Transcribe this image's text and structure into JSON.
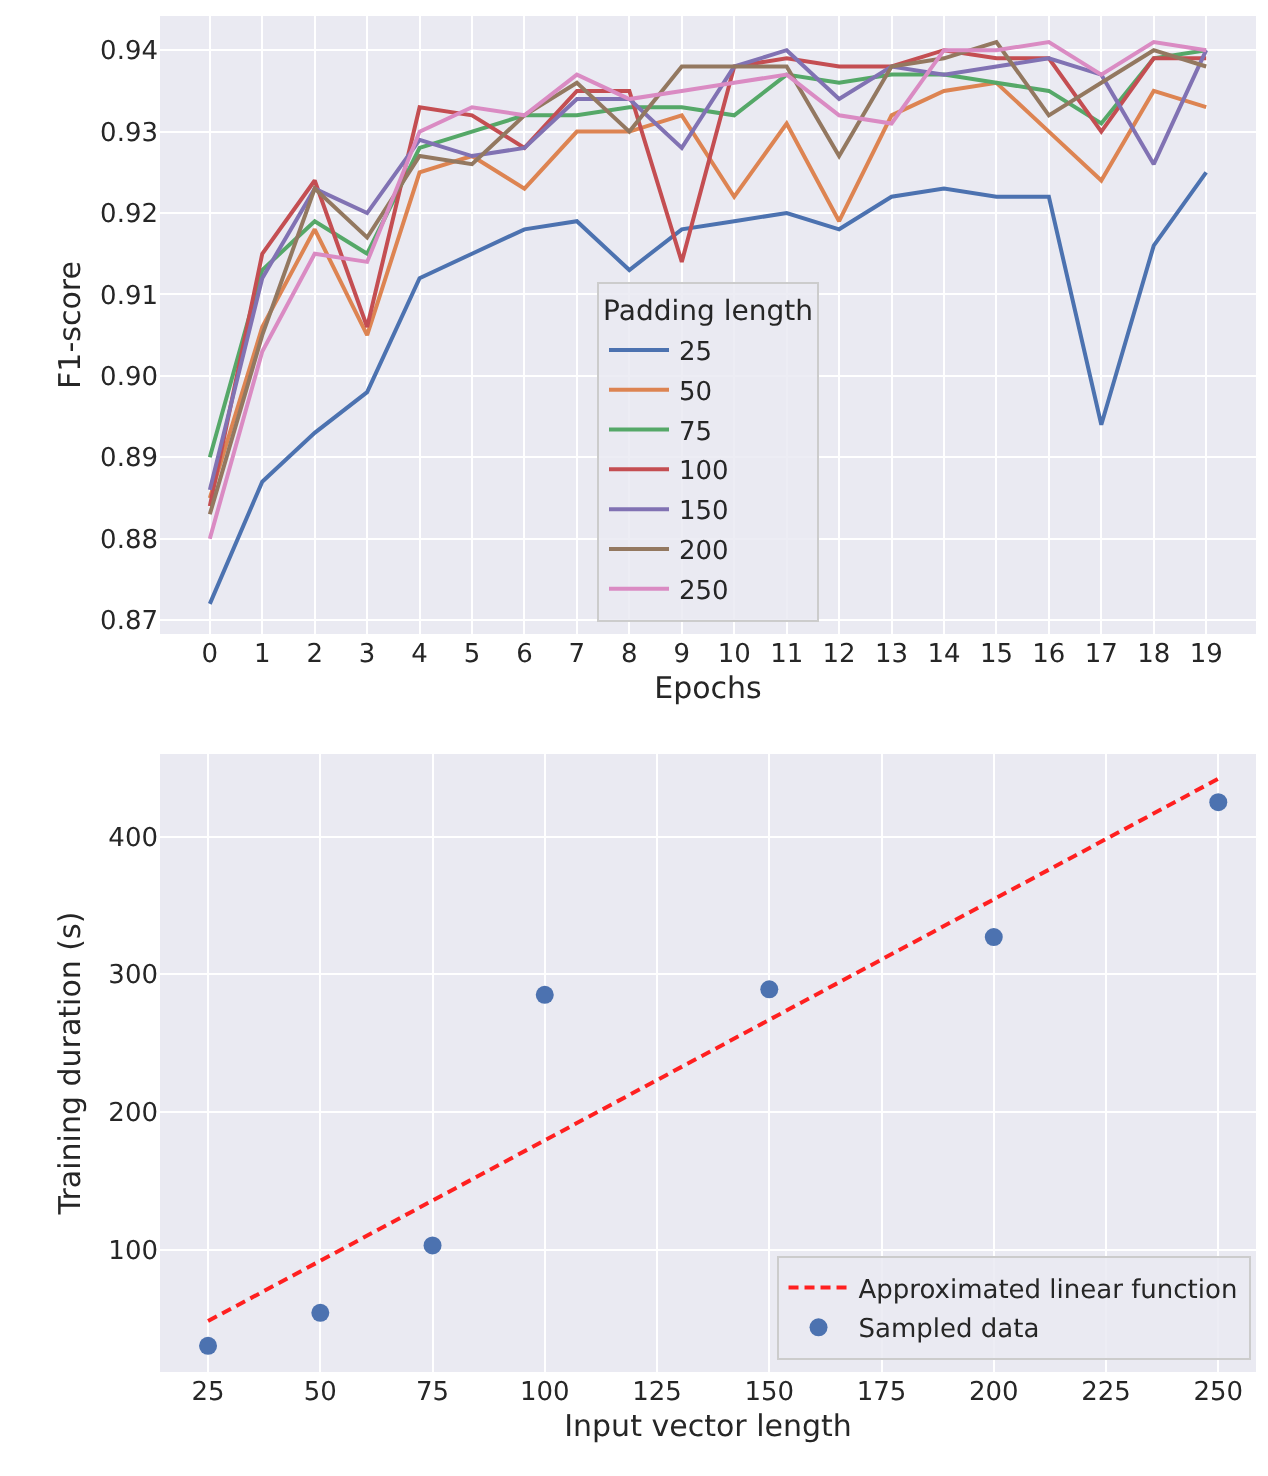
{
  "chart_data": [
    {
      "type": "line",
      "xlabel": "Epochs",
      "ylabel": "F1-score",
      "legend_title": "Padding length",
      "legend": "bottom center",
      "grid": true,
      "marker": "none",
      "line_style": "solid",
      "x": [
        0,
        1,
        2,
        3,
        4,
        5,
        6,
        7,
        8,
        9,
        10,
        11,
        12,
        13,
        14,
        15,
        16,
        17,
        18,
        19
      ],
      "xlim": [
        -0.95,
        19.95
      ],
      "xticks": [
        0,
        1,
        2,
        3,
        4,
        5,
        6,
        7,
        8,
        9,
        10,
        11,
        12,
        13,
        14,
        15,
        16,
        17,
        18,
        19
      ],
      "ylim": [
        0.8683,
        0.9442
      ],
      "yticks": [
        0.87,
        0.88,
        0.89,
        {
          "value": 0.9,
          "label": "0.90"
        },
        0.91,
        0.92,
        0.93,
        0.94
      ],
      "series": [
        {
          "name": "25",
          "color": "#4c72b0",
          "values": [
            0.872,
            0.887,
            0.893,
            0.898,
            0.912,
            0.915,
            0.918,
            0.919,
            0.913,
            0.918,
            0.919,
            0.92,
            0.918,
            0.922,
            0.923,
            0.922,
            0.922,
            0.894,
            0.916,
            0.925
          ]
        },
        {
          "name": "50",
          "color": "#dd8452",
          "values": [
            0.885,
            0.906,
            0.918,
            0.905,
            0.925,
            0.927,
            0.923,
            0.93,
            0.93,
            0.932,
            0.922,
            0.931,
            0.919,
            0.932,
            0.935,
            0.936,
            0.93,
            0.924,
            0.935,
            0.933
          ]
        },
        {
          "name": "75",
          "color": "#55a868",
          "values": [
            0.89,
            0.913,
            0.919,
            0.915,
            0.928,
            0.93,
            0.932,
            0.932,
            0.933,
            0.933,
            0.932,
            0.937,
            0.936,
            0.937,
            0.937,
            0.936,
            0.935,
            0.931,
            0.939,
            0.94
          ]
        },
        {
          "name": "100",
          "color": "#c44e52",
          "values": [
            0.884,
            0.915,
            0.924,
            0.906,
            0.933,
            0.932,
            0.928,
            0.935,
            0.935,
            0.914,
            0.938,
            0.939,
            0.938,
            0.938,
            0.94,
            0.939,
            0.939,
            0.93,
            0.939,
            0.939
          ]
        },
        {
          "name": "150",
          "color": "#8172b3",
          "values": [
            0.886,
            0.912,
            0.923,
            0.92,
            0.929,
            0.927,
            0.928,
            0.934,
            0.934,
            0.928,
            0.938,
            0.94,
            0.934,
            0.938,
            0.937,
            0.938,
            0.939,
            0.937,
            0.926,
            0.94
          ]
        },
        {
          "name": "200",
          "color": "#937860",
          "values": [
            0.883,
            0.905,
            0.923,
            0.917,
            0.927,
            0.926,
            0.932,
            0.936,
            0.93,
            0.938,
            0.938,
            0.938,
            0.927,
            0.938,
            0.939,
            0.941,
            0.932,
            0.936,
            0.94,
            0.938
          ]
        },
        {
          "name": "250",
          "color": "#da8bc3",
          "values": [
            0.88,
            0.903,
            0.915,
            0.914,
            0.93,
            0.933,
            0.932,
            0.937,
            0.934,
            0.935,
            0.936,
            0.937,
            0.932,
            0.931,
            0.94,
            0.94,
            0.941,
            0.937,
            0.941,
            0.94
          ]
        }
      ]
    },
    {
      "type": "scatter",
      "xlabel": "Input vector length",
      "ylabel": "Training duration (s)",
      "legend": "bottom right",
      "grid": true,
      "xlim": [
        14.3,
        258.4
      ],
      "xticks": [
        25,
        50,
        75,
        100,
        125,
        150,
        175,
        200,
        225,
        250
      ],
      "ylim": [
        11,
        460
      ],
      "yticks": [
        100,
        200,
        300,
        400
      ],
      "series": [
        {
          "name": "Approximated linear function",
          "type": "line",
          "line_style": "dashed",
          "marker": "none",
          "color": "#ff2020",
          "x": [
            25,
            250
          ],
          "values": [
            48,
            442
          ]
        },
        {
          "name": "Sampled data",
          "type": "scatter",
          "marker": "circle",
          "color": "#4c72b0",
          "x": [
            25,
            50,
            75,
            100,
            150,
            200,
            250
          ],
          "values": [
            30,
            54,
            103,
            285,
            289,
            327,
            425
          ]
        }
      ]
    }
  ]
}
